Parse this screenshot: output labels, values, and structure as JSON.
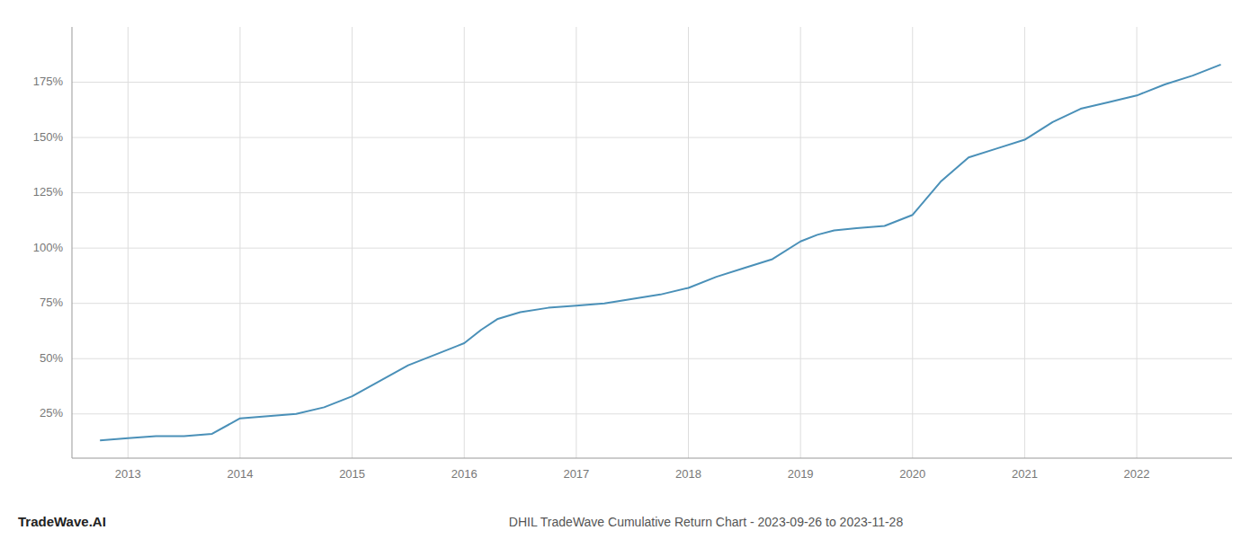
{
  "chart_data": {
    "type": "line",
    "title": "DHIL TradeWave Cumulative Return Chart - 2023-09-26 to 2023-11-28",
    "annotations": [
      "TradeWave.AI"
    ],
    "x": [
      2012.75,
      2013.0,
      2013.25,
      2013.5,
      2013.75,
      2014.0,
      2014.25,
      2014.5,
      2014.75,
      2015.0,
      2015.25,
      2015.5,
      2015.75,
      2016.0,
      2016.15,
      2016.3,
      2016.5,
      2016.75,
      2017.0,
      2017.25,
      2017.5,
      2017.75,
      2018.0,
      2018.25,
      2018.5,
      2018.75,
      2019.0,
      2019.15,
      2019.3,
      2019.5,
      2019.75,
      2020.0,
      2020.25,
      2020.5,
      2020.75,
      2021.0,
      2021.25,
      2021.5,
      2021.75,
      2022.0,
      2022.25,
      2022.5,
      2022.75
    ],
    "values": [
      13,
      14,
      15,
      15,
      16,
      23,
      24,
      25,
      28,
      33,
      40,
      47,
      52,
      57,
      63,
      68,
      71,
      73,
      74,
      75,
      77,
      79,
      82,
      87,
      91,
      95,
      103,
      106,
      108,
      109,
      110,
      115,
      130,
      141,
      145,
      149,
      157,
      163,
      166,
      169,
      174,
      178,
      183
    ],
    "color": "#4a90b8",
    "xlim": [
      2012.5,
      2022.85
    ],
    "xticks": [
      2013,
      2014,
      2015,
      2016,
      2017,
      2018,
      2019,
      2020,
      2021,
      2022
    ],
    "ylim": [
      5,
      200
    ],
    "yticks": [
      {
        "value": 25,
        "label": "25%"
      },
      {
        "value": 50,
        "label": "50%"
      },
      {
        "value": 75,
        "label": "75%"
      },
      {
        "value": 100,
        "label": "100%"
      },
      {
        "value": 125,
        "label": "125%"
      },
      {
        "value": 150,
        "label": "150%"
      },
      {
        "value": 175,
        "label": "175%"
      }
    ],
    "grid": true
  }
}
